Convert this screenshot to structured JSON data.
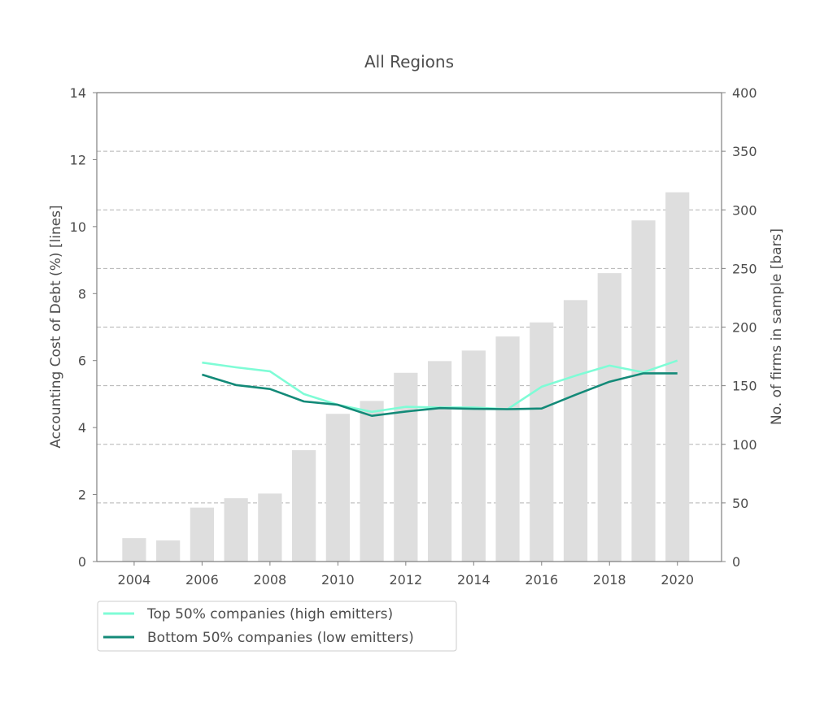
{
  "chart_data": {
    "type": "bar+line",
    "title": "All Regions",
    "xlabel": "",
    "ylabel_left": "Accounting Cost of Debt (%)  [lines]",
    "ylabel_right": "No. of firms in sample [bars]",
    "xlim": [
      2002.9,
      2021.3
    ],
    "ylim_left": [
      0,
      14
    ],
    "ylim_right": [
      0,
      400
    ],
    "x_ticks": [
      2004,
      2006,
      2008,
      2010,
      2012,
      2014,
      2016,
      2018,
      2020
    ],
    "y_ticks_left": [
      0,
      2,
      4,
      6,
      8,
      10,
      12,
      14
    ],
    "y_ticks_right": [
      0,
      50,
      100,
      150,
      200,
      250,
      300,
      350,
      400
    ],
    "grid": "horizontal dashed (right axis)",
    "legend_position": "below-left",
    "bars": {
      "axis": "right",
      "color": "#dedede",
      "x": [
        2004,
        2005,
        2006,
        2007,
        2008,
        2009,
        2010,
        2011,
        2012,
        2013,
        2014,
        2015,
        2016,
        2017,
        2018,
        2019,
        2020
      ],
      "values": [
        20,
        18,
        46,
        54,
        58,
        95,
        126,
        137,
        161,
        171,
        180,
        192,
        204,
        223,
        246,
        291,
        315
      ]
    },
    "series": [
      {
        "name": "Top 50% companies (high emitters)",
        "axis": "left",
        "color": "#7ffcd6",
        "x": [
          2006,
          2007,
          2008,
          2009,
          2010,
          2011,
          2012,
          2013,
          2014,
          2015,
          2016,
          2017,
          2018,
          2019,
          2020
        ],
        "values": [
          5.94,
          5.8,
          5.68,
          5.0,
          4.68,
          4.47,
          4.62,
          4.6,
          4.6,
          4.55,
          5.22,
          5.55,
          5.85,
          5.65,
          6.0
        ]
      },
      {
        "name": "Bottom 50% companies (low emitters)",
        "axis": "left",
        "color": "#138a78",
        "x": [
          2006,
          2007,
          2008,
          2009,
          2010,
          2011,
          2012,
          2013,
          2014,
          2015,
          2016,
          2017,
          2018,
          2019,
          2020
        ],
        "values": [
          5.58,
          5.27,
          5.15,
          4.78,
          4.68,
          4.35,
          4.48,
          4.58,
          4.56,
          4.55,
          4.57,
          4.98,
          5.37,
          5.62,
          5.62
        ]
      }
    ]
  }
}
